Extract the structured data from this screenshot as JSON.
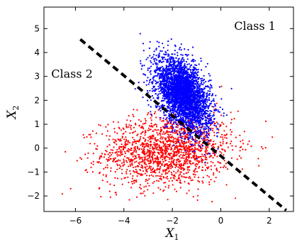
{
  "chart_data": {
    "type": "scatter",
    "title": "",
    "xlabel": {
      "base": "X",
      "sub": "1"
    },
    "ylabel": {
      "base": "X",
      "sub": "2"
    },
    "xlim": [
      -7.3,
      3.0
    ],
    "ylim": [
      -2.65,
      5.9
    ],
    "xticks": [
      -6,
      -4,
      -2,
      0,
      2
    ],
    "xtick_labels": [
      "−6",
      "−4",
      "−2",
      "0",
      "2"
    ],
    "yticks": [
      -2,
      -1,
      0,
      1,
      2,
      3,
      4,
      5
    ],
    "ytick_labels": [
      "−2",
      "−1",
      "0",
      "1",
      "2",
      "3",
      "4",
      "5"
    ],
    "grid": false,
    "legend": null,
    "series": [
      {
        "name": "Class 1",
        "color": "#0000ff",
        "distribution": "bivariate-normal",
        "mean": [
          -1.55,
          2.25
        ],
        "std": [
          0.55,
          0.75
        ],
        "correlation": -0.45,
        "n": 3500
      },
      {
        "name": "Class 2",
        "color": "#ff0000",
        "distribution": "bivariate-normal",
        "mean": [
          -2.2,
          -0.1
        ],
        "std": [
          1.35,
          0.75
        ],
        "correlation": 0.1,
        "n": 1700
      }
    ],
    "decision_boundary": {
      "style": "dashed",
      "color": "#000000",
      "points": [
        [
          -5.8,
          4.55
        ],
        [
          2.7,
          -2.6
        ]
      ]
    },
    "annotations": [
      {
        "text": "Class 1",
        "x": 0.55,
        "y": 4.95
      },
      {
        "text": "Class 2",
        "x": -7.0,
        "y": 2.95
      }
    ]
  }
}
